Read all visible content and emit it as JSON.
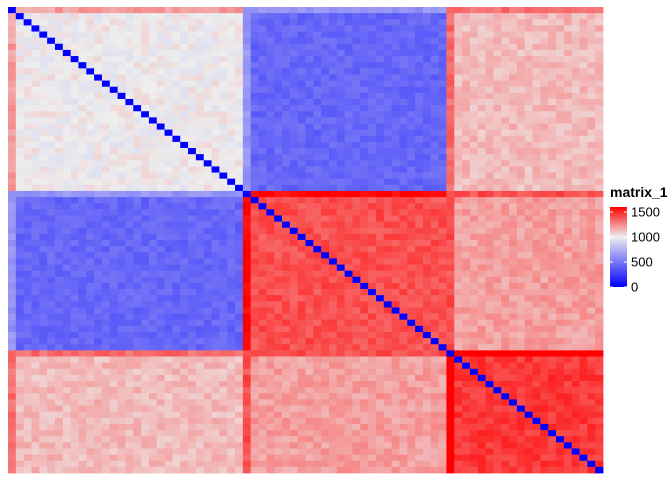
{
  "chart_data": {
    "type": "heatmap",
    "n_rows": 76,
    "n_cols": 76,
    "symmetric": true,
    "diagonal_value": 0,
    "groups": [
      {
        "size": 30,
        "row_offset": 200
      },
      {
        "size": 26,
        "row_offset": 200
      },
      {
        "size": 20,
        "row_offset": 200
      }
    ],
    "block_values": [
      [
        1000,
        430,
        1130
      ],
      [
        430,
        1400,
        1200
      ],
      [
        1130,
        1200,
        1460
      ]
    ],
    "color_scale": {
      "min": 0,
      "max": 1600,
      "stops": [
        {
          "value": 0,
          "color": "#0000FF"
        },
        {
          "value": 1000,
          "color": "#EEEEEE"
        },
        {
          "value": 1600,
          "color": "#FF0000"
        }
      ]
    },
    "legend": {
      "title": "matrix_1",
      "ticks": [
        "0",
        "500",
        "1000",
        "1500"
      ],
      "tick_values": [
        0,
        500,
        1000,
        1500
      ]
    }
  }
}
